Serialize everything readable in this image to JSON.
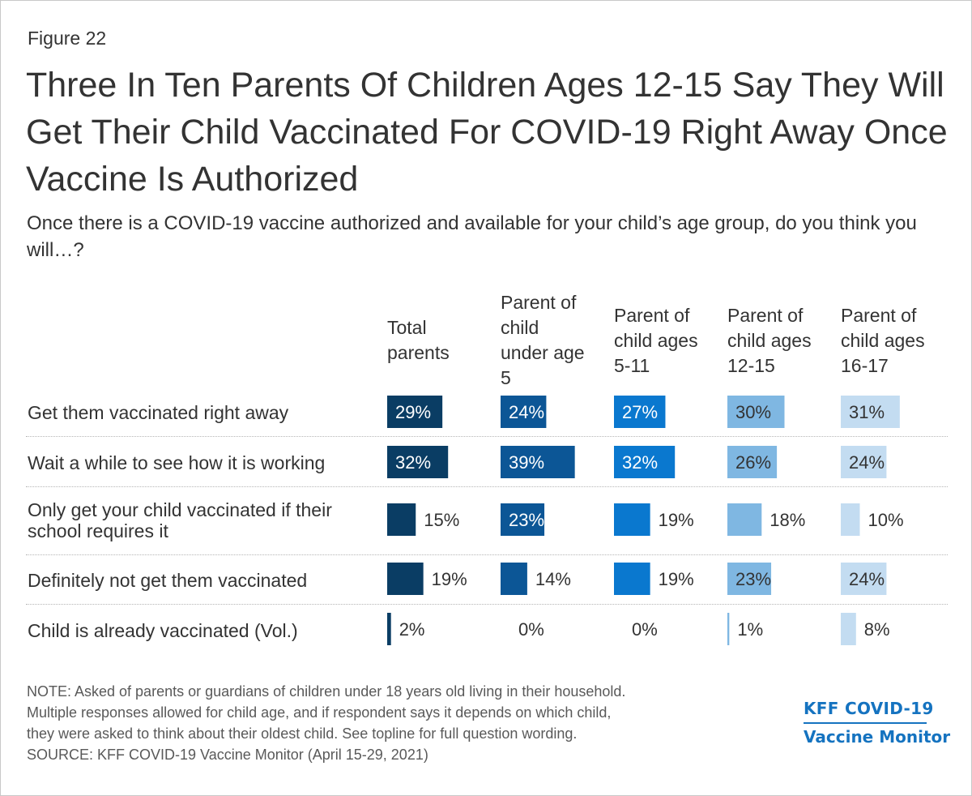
{
  "figure_label": "Figure 22",
  "title": "Three In Ten Parents Of Children Ages 12-15 Say They Will Get Their Child Vaccinated For COVID-19 Right Away Once Vaccine Is Authorized",
  "subtitle": "Once there is a COVID-19 vaccine authorized and available for your child’s age group, do you think you will…?",
  "note_lines": [
    "NOTE: Asked of parents or guardians of children under 18 years old living in their household.",
    "Multiple responses allowed for child age, and if respondent says it depends on which child,",
    "they were asked to think about their oldest child. See topline for full question wording.",
    "SOURCE: KFF COVID-19 Vaccine Monitor (April 15-29, 2021)"
  ],
  "logo": {
    "line1": "KFF COVID-19",
    "line2": "Vaccine Monitor",
    "color": "#1573c0"
  },
  "chart_data": {
    "type": "bar",
    "orientation": "horizontal",
    "layout": "small-multiples",
    "categories": [
      "Get them vaccinated right away",
      "Wait a while to see how it is working",
      "Only get your child vaccinated if their\nschool requires it",
      "Definitely not get them vaccinated",
      "Child is already vaccinated (Vol.)"
    ],
    "series": [
      {
        "name": "Total\nparents",
        "color": "#0a3d64",
        "values": [
          29,
          32,
          15,
          19,
          2
        ],
        "labels": [
          "29%",
          "32%",
          "15%",
          "19%",
          "2%"
        ]
      },
      {
        "name": "Parent of\nchild\nunder age\n5",
        "color": "#0c5696",
        "values": [
          24,
          39,
          23,
          14,
          0
        ],
        "labels": [
          "24%",
          "39%",
          "23%",
          "14%",
          "0%"
        ]
      },
      {
        "name": "Parent of\nchild ages\n5-11",
        "color": "#0a78cf",
        "values": [
          27,
          32,
          19,
          19,
          0
        ],
        "labels": [
          "27%",
          "32%",
          "19%",
          "19%",
          "0%"
        ]
      },
      {
        "name": "Parent of\nchild ages\n12-15",
        "color": "#7fb7e2",
        "values": [
          30,
          26,
          18,
          23,
          1
        ],
        "labels": [
          "30%",
          "26%",
          "18%",
          "23%",
          "1%"
        ]
      },
      {
        "name": "Parent of\nchild ages\n16-17",
        "color": "#c3dcf1",
        "values": [
          31,
          24,
          10,
          24,
          8
        ],
        "labels": [
          "31%",
          "24%",
          "10%",
          "24%",
          "8%"
        ]
      }
    ],
    "xlim": [
      0,
      100
    ],
    "grid": false,
    "legend": "column headers"
  }
}
